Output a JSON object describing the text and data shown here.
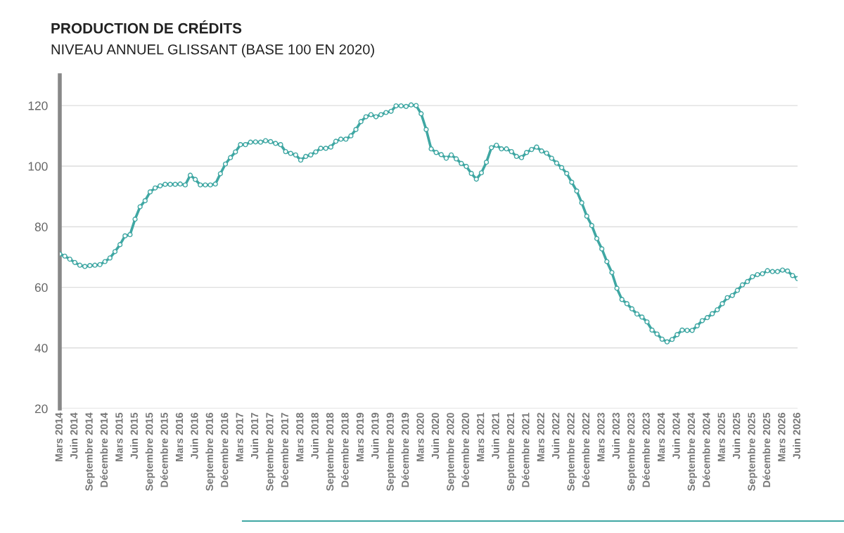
{
  "chart_data": {
    "type": "line",
    "title": "PRODUCTION DE CRÉDITS",
    "subtitle": "NIVEAU ANNUEL GLISSANT (BASE 100 EN 2020)",
    "categories": [
      "Mars 2014",
      null,
      null,
      "Juin 2014",
      null,
      null,
      "Septembre 2014",
      null,
      null,
      "Décembre 2014",
      null,
      null,
      "Mars 2015",
      null,
      null,
      "Juin 2015",
      null,
      null,
      "Septembre 2015",
      null,
      null,
      "Décembre 2015",
      null,
      null,
      "Mars 2016",
      null,
      null,
      "Juin 2016",
      null,
      null,
      "Septembre 2016",
      null,
      null,
      "Décembre 2016",
      null,
      null,
      "Mars 2017",
      null,
      null,
      "Juin 2017",
      null,
      null,
      "Septembre 2017",
      null,
      null,
      "Décembre 2017",
      null,
      null,
      "Mars 2018",
      null,
      null,
      "Juin 2018",
      null,
      null,
      "Septembre 2018",
      null,
      null,
      "Décembre 2018",
      null,
      null,
      "Mars 2019",
      null,
      null,
      "Juin 2019",
      null,
      null,
      "Septembre 2019",
      null,
      null,
      "Décembre 2019",
      null,
      null,
      "Mars 2020",
      null,
      null,
      "Juin 2020",
      null,
      null,
      "Septembre 2020",
      null,
      null,
      "Décembre 2020",
      null,
      null,
      "Mars 2021",
      null,
      null,
      "Juin 2021",
      null,
      null,
      "Septembre 2021",
      null,
      null,
      "Décembre 2021",
      null,
      null,
      "Mars 2022",
      null,
      null,
      "Juin 2022",
      null,
      null,
      "Septembre 2022",
      null,
      null,
      "Décembre 2022",
      null,
      null,
      "Mars 2023",
      null,
      null,
      "Juin 2023",
      null,
      null,
      "Septembre 2023",
      null,
      null,
      "Décembre 2023",
      null,
      null,
      "Mars 2024",
      null,
      null,
      "Juin 2024",
      null,
      null,
      "Septembre 2024",
      null,
      null,
      "Décembre 2024",
      null,
      null,
      "Mars 2025",
      null,
      null,
      "Juin 2025",
      null,
      null,
      "Septembre 2025",
      null,
      null,
      "Décembre 2025",
      null,
      null,
      "Mars 2026",
      null,
      null,
      "Juin 2026"
    ],
    "series": [
      {
        "color": "#3fa7a3",
        "values": [
          71,
          70.3,
          69.3,
          68.2,
          67.3,
          66.9,
          67.2,
          67.3,
          67.5,
          68.5,
          69.7,
          71.8,
          74.1,
          77,
          77.4,
          82.5,
          86.6,
          88.6,
          91.5,
          92.8,
          93.5,
          94,
          94,
          94,
          94.1,
          93.8,
          97,
          95.6,
          93.8,
          93.8,
          93.8,
          94.1,
          97.5,
          100.7,
          102.8,
          104.7,
          107.1,
          107.1,
          107.9,
          108,
          107.9,
          108.4,
          108.1,
          107.5,
          107.1,
          104.8,
          104.2,
          103.7,
          102,
          103.2,
          103.7,
          104.7,
          105.9,
          105.9,
          106.3,
          108.2,
          108.9,
          108.9,
          110,
          112.1,
          114.7,
          116.3,
          117,
          116.3,
          117,
          117.7,
          118.1,
          119.9,
          119.9,
          119.7,
          120.2,
          120,
          117.3,
          112.1,
          105.7,
          104.5,
          103.8,
          102.6,
          103.7,
          102.4,
          100.9,
          99.9,
          97.6,
          95.7,
          97.8,
          101.3,
          106.1,
          106.9,
          105.7,
          105.7,
          104.8,
          103.2,
          102.8,
          104.5,
          105.5,
          106.3,
          105,
          104.3,
          102.6,
          101,
          99.5,
          97.6,
          94.7,
          91.8,
          87.9,
          83.5,
          80.4,
          76.1,
          72.7,
          68.5,
          64.9,
          59.7,
          56,
          54.6,
          52.9,
          51.2,
          50.2,
          48.6,
          45.9,
          44.6,
          42.9,
          42,
          42.8,
          44.4,
          45.9,
          45.8,
          45.8,
          47.3,
          49,
          50,
          51.3,
          52.6,
          54.6,
          56.6,
          57.3,
          59,
          60.8,
          61.9,
          63.5,
          64.2,
          64.5,
          65.5,
          65.2,
          65.2,
          65.7,
          65.4,
          63.9,
          62.9
        ]
      }
    ],
    "ylim": [
      20,
      130
    ],
    "yticks": [
      20,
      40,
      60,
      80,
      100,
      120
    ],
    "grid": "y",
    "marker": "circle",
    "line_style": "solid"
  }
}
